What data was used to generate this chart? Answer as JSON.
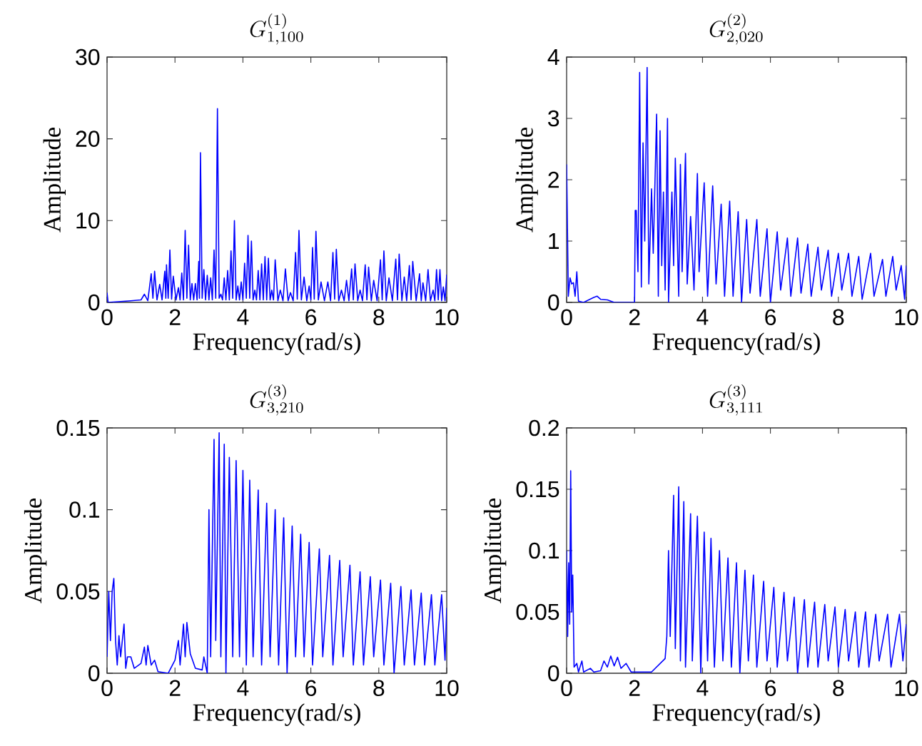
{
  "chart_data": [
    {
      "type": "line",
      "title": "G^{(1)}_{1,100}",
      "xlabel": "Frequency(rad/s)",
      "ylabel": "Amplitude",
      "color": "#0000ff",
      "xlim": [
        0,
        10
      ],
      "ylim": [
        0,
        30
      ],
      "xticks": [
        0,
        2,
        4,
        6,
        8,
        10
      ],
      "yticks": [
        0,
        10,
        20,
        30
      ],
      "x": [
        0,
        0.03,
        0.7,
        1.0,
        1.1,
        1.2,
        1.3,
        1.35,
        1.4,
        1.47,
        1.55,
        1.62,
        1.7,
        1.73,
        1.75,
        1.8,
        1.85,
        1.9,
        1.95,
        2.03,
        2.1,
        2.15,
        2.2,
        2.25,
        2.3,
        2.35,
        2.4,
        2.45,
        2.5,
        2.55,
        2.6,
        2.65,
        2.7,
        2.72,
        2.75,
        2.8,
        2.85,
        2.9,
        2.95,
        3.0,
        3.05,
        3.1,
        3.15,
        3.2,
        3.25,
        3.3,
        3.35,
        3.4,
        3.45,
        3.5,
        3.55,
        3.6,
        3.65,
        3.7,
        3.75,
        3.8,
        3.85,
        3.9,
        3.95,
        4.0,
        4.05,
        4.1,
        4.15,
        4.2,
        4.25,
        4.3,
        4.35,
        4.4,
        4.45,
        4.5,
        4.55,
        4.6,
        4.65,
        4.7,
        4.75,
        4.8,
        4.85,
        4.9,
        4.95,
        5.03,
        5.1,
        5.18,
        5.25,
        5.33,
        5.4,
        5.48,
        5.55,
        5.6,
        5.65,
        5.72,
        5.8,
        5.88,
        5.95,
        6.0,
        6.05,
        6.1,
        6.15,
        6.22,
        6.3,
        6.4,
        6.5,
        6.58,
        6.65,
        6.7,
        6.75,
        6.82,
        6.9,
        6.98,
        7.05,
        7.12,
        7.2,
        7.25,
        7.3,
        7.38,
        7.45,
        7.52,
        7.6,
        7.65,
        7.7,
        7.78,
        7.85,
        7.95,
        8.05,
        8.1,
        8.15,
        8.22,
        8.3,
        8.4,
        8.5,
        8.55,
        8.6,
        8.68,
        8.75,
        8.82,
        8.9,
        8.95,
        9.0,
        9.1,
        9.2,
        9.25,
        9.3,
        9.38,
        9.45,
        9.52,
        9.6,
        9.65,
        9.7,
        9.75,
        9.8,
        9.85,
        9.9,
        9.95,
        10
      ],
      "values": [
        1.2,
        0,
        0.2,
        0.3,
        1,
        0.2,
        3.5,
        0.5,
        3.8,
        0.3,
        2.2,
        0.3,
        3.8,
        0.5,
        4.6,
        0.5,
        6.4,
        0.4,
        3.2,
        0.3,
        1.8,
        0.3,
        3.6,
        0.3,
        8.8,
        0.5,
        7,
        0.3,
        2.3,
        0.3,
        2.3,
        0.3,
        5,
        0.5,
        18.3,
        0.5,
        4,
        0.3,
        3.3,
        0.3,
        3,
        0.3,
        6.4,
        0.5,
        23.7,
        0.5,
        1,
        0.3,
        3,
        0.3,
        3.9,
        0.3,
        6.3,
        0.5,
        10,
        0.3,
        2,
        0.3,
        2.5,
        0.3,
        4.8,
        0.5,
        8.2,
        0.5,
        7.5,
        0.3,
        1.5,
        0.3,
        3.9,
        0.3,
        4.7,
        0.3,
        5.6,
        0.3,
        5.4,
        0.3,
        1.5,
        0.3,
        5.2,
        0.2,
        1.5,
        0.2,
        4.1,
        0.2,
        1.2,
        0.2,
        6.1,
        0.4,
        8.8,
        0.3,
        3.1,
        0.2,
        2,
        0.3,
        6.7,
        0.4,
        8.7,
        0.3,
        2.5,
        0.2,
        2.5,
        0.2,
        6.1,
        0.4,
        6.5,
        0.2,
        1.5,
        0.2,
        2.7,
        0.2,
        4.1,
        0.3,
        4.7,
        0.2,
        1.5,
        0.2,
        4.6,
        0.3,
        4.3,
        0.2,
        2.7,
        0.2,
        5.2,
        0.3,
        6.3,
        0.2,
        3,
        0.2,
        5.3,
        0.3,
        5.9,
        0.2,
        3.1,
        0.2,
        4.5,
        0.3,
        5,
        0.2,
        3.5,
        0.2,
        2.4,
        0.2,
        4,
        0.2,
        1.5,
        0.2,
        4,
        0.3,
        4,
        0.2,
        1.9,
        0.2,
        3.4
      ]
    },
    {
      "type": "line",
      "title": "G^{(2)}_{2,020}",
      "xlabel": "Frequency(rad/s)",
      "ylabel": "Amplitude",
      "color": "#0000ff",
      "xlim": [
        0,
        10
      ],
      "ylim": [
        0,
        4
      ],
      "xticks": [
        0,
        2,
        4,
        6,
        8,
        10
      ],
      "yticks": [
        0,
        1,
        2,
        3,
        4
      ],
      "x": [
        0,
        0.05,
        0.1,
        0.15,
        0.2,
        0.25,
        0.3,
        0.35,
        0.5,
        0.8,
        0.9,
        1.0,
        1.2,
        1.4,
        2.0,
        2.02,
        2.05,
        2.1,
        2.15,
        2.2,
        2.25,
        2.3,
        2.37,
        2.42,
        2.5,
        2.55,
        2.65,
        2.7,
        2.75,
        2.8,
        2.85,
        2.9,
        2.97,
        3.0,
        3.1,
        3.15,
        3.2,
        3.3,
        3.35,
        3.4,
        3.5,
        3.55,
        3.65,
        3.75,
        3.85,
        3.9,
        4.05,
        4.15,
        4.3,
        4.4,
        4.55,
        4.65,
        4.8,
        4.9,
        5.05,
        5.15,
        5.3,
        5.4,
        5.6,
        5.7,
        5.9,
        6.0,
        6.2,
        6.3,
        6.5,
        6.6,
        6.8,
        6.9,
        7.1,
        7.2,
        7.4,
        7.5,
        7.7,
        7.8,
        8.0,
        8.1,
        8.3,
        8.4,
        8.6,
        8.7,
        8.95,
        9.05,
        9.3,
        9.4,
        9.6,
        9.7,
        9.85,
        9.95,
        10
      ],
      "values": [
        2.25,
        0.1,
        0.4,
        0.3,
        0.32,
        0.1,
        0.5,
        0.02,
        0,
        0.08,
        0.1,
        0.05,
        0.04,
        0,
        0,
        1.5,
        1.5,
        0.5,
        3.75,
        0.25,
        2.6,
        1,
        3.83,
        0.3,
        1.85,
        0.8,
        3.07,
        0.1,
        2.8,
        0.6,
        1.8,
        0.2,
        3,
        0,
        1.8,
        0.6,
        2.35,
        0.1,
        2.25,
        0.5,
        2.43,
        0.3,
        1.4,
        0.2,
        2.1,
        0.5,
        1.95,
        0.1,
        1.9,
        0.3,
        1.6,
        0.1,
        1.65,
        0.1,
        1.48,
        0,
        1.35,
        0.15,
        1.35,
        0.1,
        1.2,
        0,
        1.15,
        0.2,
        1.05,
        0.1,
        1.05,
        0.15,
        0.95,
        0.1,
        0.9,
        0.2,
        0.85,
        0.1,
        0.8,
        0.2,
        0.8,
        0.1,
        0.75,
        0.05,
        0.8,
        0.1,
        0.7,
        0.1,
        0.75,
        0.2,
        0.6,
        0.05,
        0.6
      ]
    },
    {
      "type": "line",
      "title": "G^{(3)}_{3,210}",
      "xlabel": "Frequency(rad/s)",
      "ylabel": "Amplitude",
      "color": "#0000ff",
      "xlim": [
        0,
        10
      ],
      "ylim": [
        0,
        0.15
      ],
      "xticks": [
        0,
        2,
        4,
        6,
        8,
        10
      ],
      "yticks": [
        0,
        0.05,
        0.1,
        0.15
      ],
      "x": [
        0,
        0.05,
        0.1,
        0.15,
        0.2,
        0.25,
        0.3,
        0.35,
        0.4,
        0.5,
        0.55,
        0.6,
        0.7,
        0.8,
        1.0,
        1.1,
        1.15,
        1.2,
        1.3,
        1.4,
        1.5,
        1.8,
        2.0,
        2.1,
        2.15,
        2.25,
        2.3,
        2.35,
        2.45,
        2.6,
        2.8,
        2.85,
        2.95,
        3.0,
        3.05,
        3.15,
        3.2,
        3.3,
        3.35,
        3.45,
        3.5,
        3.6,
        3.7,
        3.8,
        3.9,
        4.0,
        4.1,
        4.2,
        4.3,
        4.45,
        4.55,
        4.7,
        4.8,
        4.95,
        5.05,
        5.2,
        5.3,
        5.45,
        5.55,
        5.7,
        5.8,
        5.95,
        6.05,
        6.25,
        6.35,
        6.55,
        6.65,
        6.85,
        6.95,
        7.15,
        7.25,
        7.45,
        7.55,
        7.75,
        7.85,
        8.05,
        8.15,
        8.35,
        8.45,
        8.65,
        8.75,
        8.95,
        9.05,
        9.25,
        9.35,
        9.55,
        9.65,
        9.85,
        9.95,
        10
      ],
      "values": [
        0.01,
        0.05,
        0.02,
        0.05,
        0.058,
        0.02,
        0.005,
        0.023,
        0.01,
        0.03,
        0.003,
        0.01,
        0.01,
        0.003,
        0.006,
        0.016,
        0.005,
        0.017,
        0.005,
        0.008,
        0.001,
        0,
        0.008,
        0.02,
        0.005,
        0.03,
        0.01,
        0.031,
        0.012,
        0.003,
        0.002,
        0.01,
        0,
        0.1,
        0.01,
        0.143,
        0.02,
        0.147,
        0.01,
        0.14,
        0,
        0.132,
        0.01,
        0.13,
        0.01,
        0.124,
        0.005,
        0.118,
        0.01,
        0.112,
        0.005,
        0.104,
        0.01,
        0.1,
        0.005,
        0.095,
        0,
        0.09,
        0.01,
        0.085,
        0.01,
        0.08,
        0.005,
        0.076,
        0.01,
        0.072,
        0.005,
        0.069,
        0.01,
        0.066,
        0.005,
        0.062,
        0.005,
        0.059,
        0.01,
        0.057,
        0.005,
        0.055,
        0,
        0.053,
        0.005,
        0.051,
        0.005,
        0.049,
        0.005,
        0.048,
        0.005,
        0.048,
        0.008,
        0.04
      ]
    },
    {
      "type": "line",
      "title": "G^{(3)}_{3,111}",
      "xlabel": "Frequency(rad/s)",
      "ylabel": "Amplitude",
      "color": "#0000ff",
      "xlim": [
        0,
        10
      ],
      "ylim": [
        0,
        0.2
      ],
      "xticks": [
        0,
        2,
        4,
        6,
        8,
        10
      ],
      "yticks": [
        0,
        0.05,
        0.1,
        0.15,
        0.2
      ],
      "x": [
        0,
        0.03,
        0.06,
        0.09,
        0.12,
        0.15,
        0.18,
        0.22,
        0.3,
        0.35,
        0.45,
        0.5,
        0.7,
        0.8,
        1.0,
        1.1,
        1.2,
        1.3,
        1.4,
        1.5,
        1.6,
        1.75,
        1.9,
        2.5,
        2.9,
        2.95,
        3.0,
        3.05,
        3.15,
        3.2,
        3.3,
        3.35,
        3.45,
        3.5,
        3.65,
        3.7,
        3.85,
        3.95,
        4.05,
        4.15,
        4.25,
        4.35,
        4.5,
        4.6,
        4.75,
        4.85,
        5.0,
        5.1,
        5.25,
        5.35,
        5.5,
        5.6,
        5.8,
        5.9,
        6.1,
        6.2,
        6.4,
        6.5,
        6.7,
        6.8,
        7.0,
        7.1,
        7.3,
        7.4,
        7.6,
        7.7,
        7.9,
        8.0,
        8.2,
        8.3,
        8.5,
        8.6,
        8.8,
        8.9,
        9.1,
        9.2,
        9.45,
        9.55,
        9.8,
        9.9,
        10
      ],
      "values": [
        0.1,
        0.03,
        0.09,
        0.04,
        0.165,
        0.05,
        0.08,
        0.005,
        0.008,
        0.001,
        0.01,
        0.001,
        0.004,
        0.001,
        0.002,
        0.01,
        0.005,
        0.014,
        0.006,
        0.013,
        0.004,
        0.008,
        0.001,
        0.001,
        0.012,
        0.03,
        0.1,
        0.03,
        0.145,
        0.02,
        0.152,
        0.01,
        0.14,
        0.005,
        0.13,
        0.01,
        0.128,
        0,
        0.115,
        0.01,
        0.11,
        0.005,
        0.1,
        0.01,
        0.094,
        0.005,
        0.09,
        0,
        0.084,
        0.01,
        0.08,
        0.005,
        0.075,
        0.01,
        0.07,
        0.005,
        0.066,
        0.01,
        0.062,
        0,
        0.06,
        0.005,
        0.058,
        0.005,
        0.056,
        0.01,
        0.054,
        0.005,
        0.052,
        0.01,
        0.05,
        0.005,
        0.05,
        0.005,
        0.048,
        0.01,
        0.048,
        0.005,
        0.048,
        0.01,
        0.04
      ]
    }
  ]
}
